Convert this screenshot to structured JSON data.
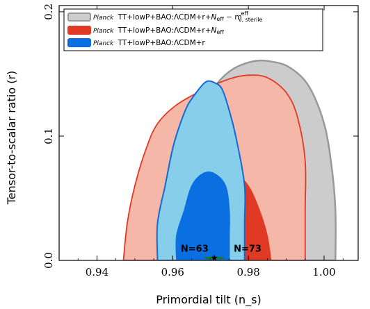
{
  "chart_data": {
    "type": "area",
    "xlabel": "Primordial tilt (n_s)",
    "ylabel": "Tensor-to-scalar ratio (r)",
    "xlim": [
      0.93,
      1.009
    ],
    "ylim": [
      0.0,
      0.205
    ],
    "xticks": [
      "0.94",
      "0.96",
      "0.98",
      "1.00"
    ],
    "yticks": [
      "0.0",
      "0.1",
      "0.2"
    ],
    "legend_position": "top-left",
    "series": [
      {
        "name": "Planck TT+lowP+BAO:ΛCDM+r+N_eff − m_ν,sterile^eff",
        "legend_prefix": "Planck",
        "legend_main": "TT+lowP+BAO:ΛCDM+r+",
        "legend_tail_1": "N",
        "legend_tail_1_sub": "eff",
        "legend_tail_2": " − m",
        "legend_tail_2_sup": "eff",
        "legend_tail_2_sub": "ν, sterile",
        "fill_color": "#cccccc",
        "edge_color": "#999999",
        "contour_95": [
          [
            0.961,
            0.0
          ],
          [
            0.962,
            0.04
          ],
          [
            0.963,
            0.08
          ],
          [
            0.966,
            0.11
          ],
          [
            0.97,
            0.135
          ],
          [
            0.975,
            0.152
          ],
          [
            0.981,
            0.16
          ],
          [
            0.986,
            0.16
          ],
          [
            0.991,
            0.155
          ],
          [
            0.996,
            0.14
          ],
          [
            1.0,
            0.11
          ],
          [
            1.002,
            0.075
          ],
          [
            1.003,
            0.04
          ],
          [
            1.003,
            0.0
          ]
        ]
      },
      {
        "name": "Planck TT+lowP+BAO:ΛCDM+r+N_eff",
        "legend_prefix": "Planck",
        "legend_main": "TT+lowP+BAO:ΛCDM+r+",
        "legend_tail_1": "N",
        "legend_tail_1_sub": "eff",
        "fill_color": "#f5b7a8",
        "core_color": "#e03a24",
        "edge_color": "#e03a24",
        "contour_95": [
          [
            0.947,
            0.0
          ],
          [
            0.948,
            0.03
          ],
          [
            0.95,
            0.06
          ],
          [
            0.953,
            0.09
          ],
          [
            0.956,
            0.11
          ],
          [
            0.961,
            0.125
          ],
          [
            0.968,
            0.137
          ],
          [
            0.975,
            0.146
          ],
          [
            0.98,
            0.149
          ],
          [
            0.985,
            0.147
          ],
          [
            0.99,
            0.135
          ],
          [
            0.993,
            0.115
          ],
          [
            0.995,
            0.08
          ],
          [
            0.995,
            0.04
          ],
          [
            0.995,
            0.0
          ]
        ],
        "contour_68": [
          [
            0.961,
            0.0
          ],
          [
            0.961,
            0.035
          ],
          [
            0.963,
            0.058
          ],
          [
            0.966,
            0.07
          ],
          [
            0.97,
            0.074
          ],
          [
            0.976,
            0.071
          ],
          [
            0.98,
            0.06
          ],
          [
            0.983,
            0.04
          ],
          [
            0.985,
            0.02
          ],
          [
            0.986,
            0.0
          ]
        ]
      },
      {
        "name": "Planck TT+lowP+BAO:ΛCDM+r",
        "legend_prefix": "Planck",
        "legend_main": "TT+lowP+BAO:ΛCDM+r",
        "fill_color": "#87ceeb",
        "core_color": "#0a6fe0",
        "edge_color": "#1468d6",
        "contour_95": [
          [
            0.956,
            0.0
          ],
          [
            0.956,
            0.03
          ],
          [
            0.958,
            0.06
          ],
          [
            0.96,
            0.09
          ],
          [
            0.962,
            0.11
          ],
          [
            0.964,
            0.125
          ],
          [
            0.967,
            0.138
          ],
          [
            0.969,
            0.144
          ],
          [
            0.971,
            0.143
          ],
          [
            0.973,
            0.138
          ],
          [
            0.975,
            0.12
          ],
          [
            0.977,
            0.095
          ],
          [
            0.979,
            0.06
          ],
          [
            0.979,
            0.03
          ],
          [
            0.979,
            0.0
          ]
        ],
        "contour_68": [
          [
            0.961,
            0.0
          ],
          [
            0.961,
            0.02
          ],
          [
            0.963,
            0.04
          ],
          [
            0.965,
            0.06
          ],
          [
            0.968,
            0.07
          ],
          [
            0.971,
            0.07
          ],
          [
            0.974,
            0.06
          ],
          [
            0.975,
            0.04
          ],
          [
            0.975,
            0.02
          ],
          [
            0.975,
            0.0
          ]
        ]
      }
    ],
    "annotations": [
      {
        "text": "N=63",
        "x": 0.9625,
        "y": 0.007
      },
      {
        "text": "N=73",
        "x": 0.9765,
        "y": 0.007
      }
    ],
    "marker_bar": {
      "x_start": 0.9685,
      "x_end": 0.9735,
      "y": 0.002,
      "color": "#1a7d1a"
    }
  }
}
